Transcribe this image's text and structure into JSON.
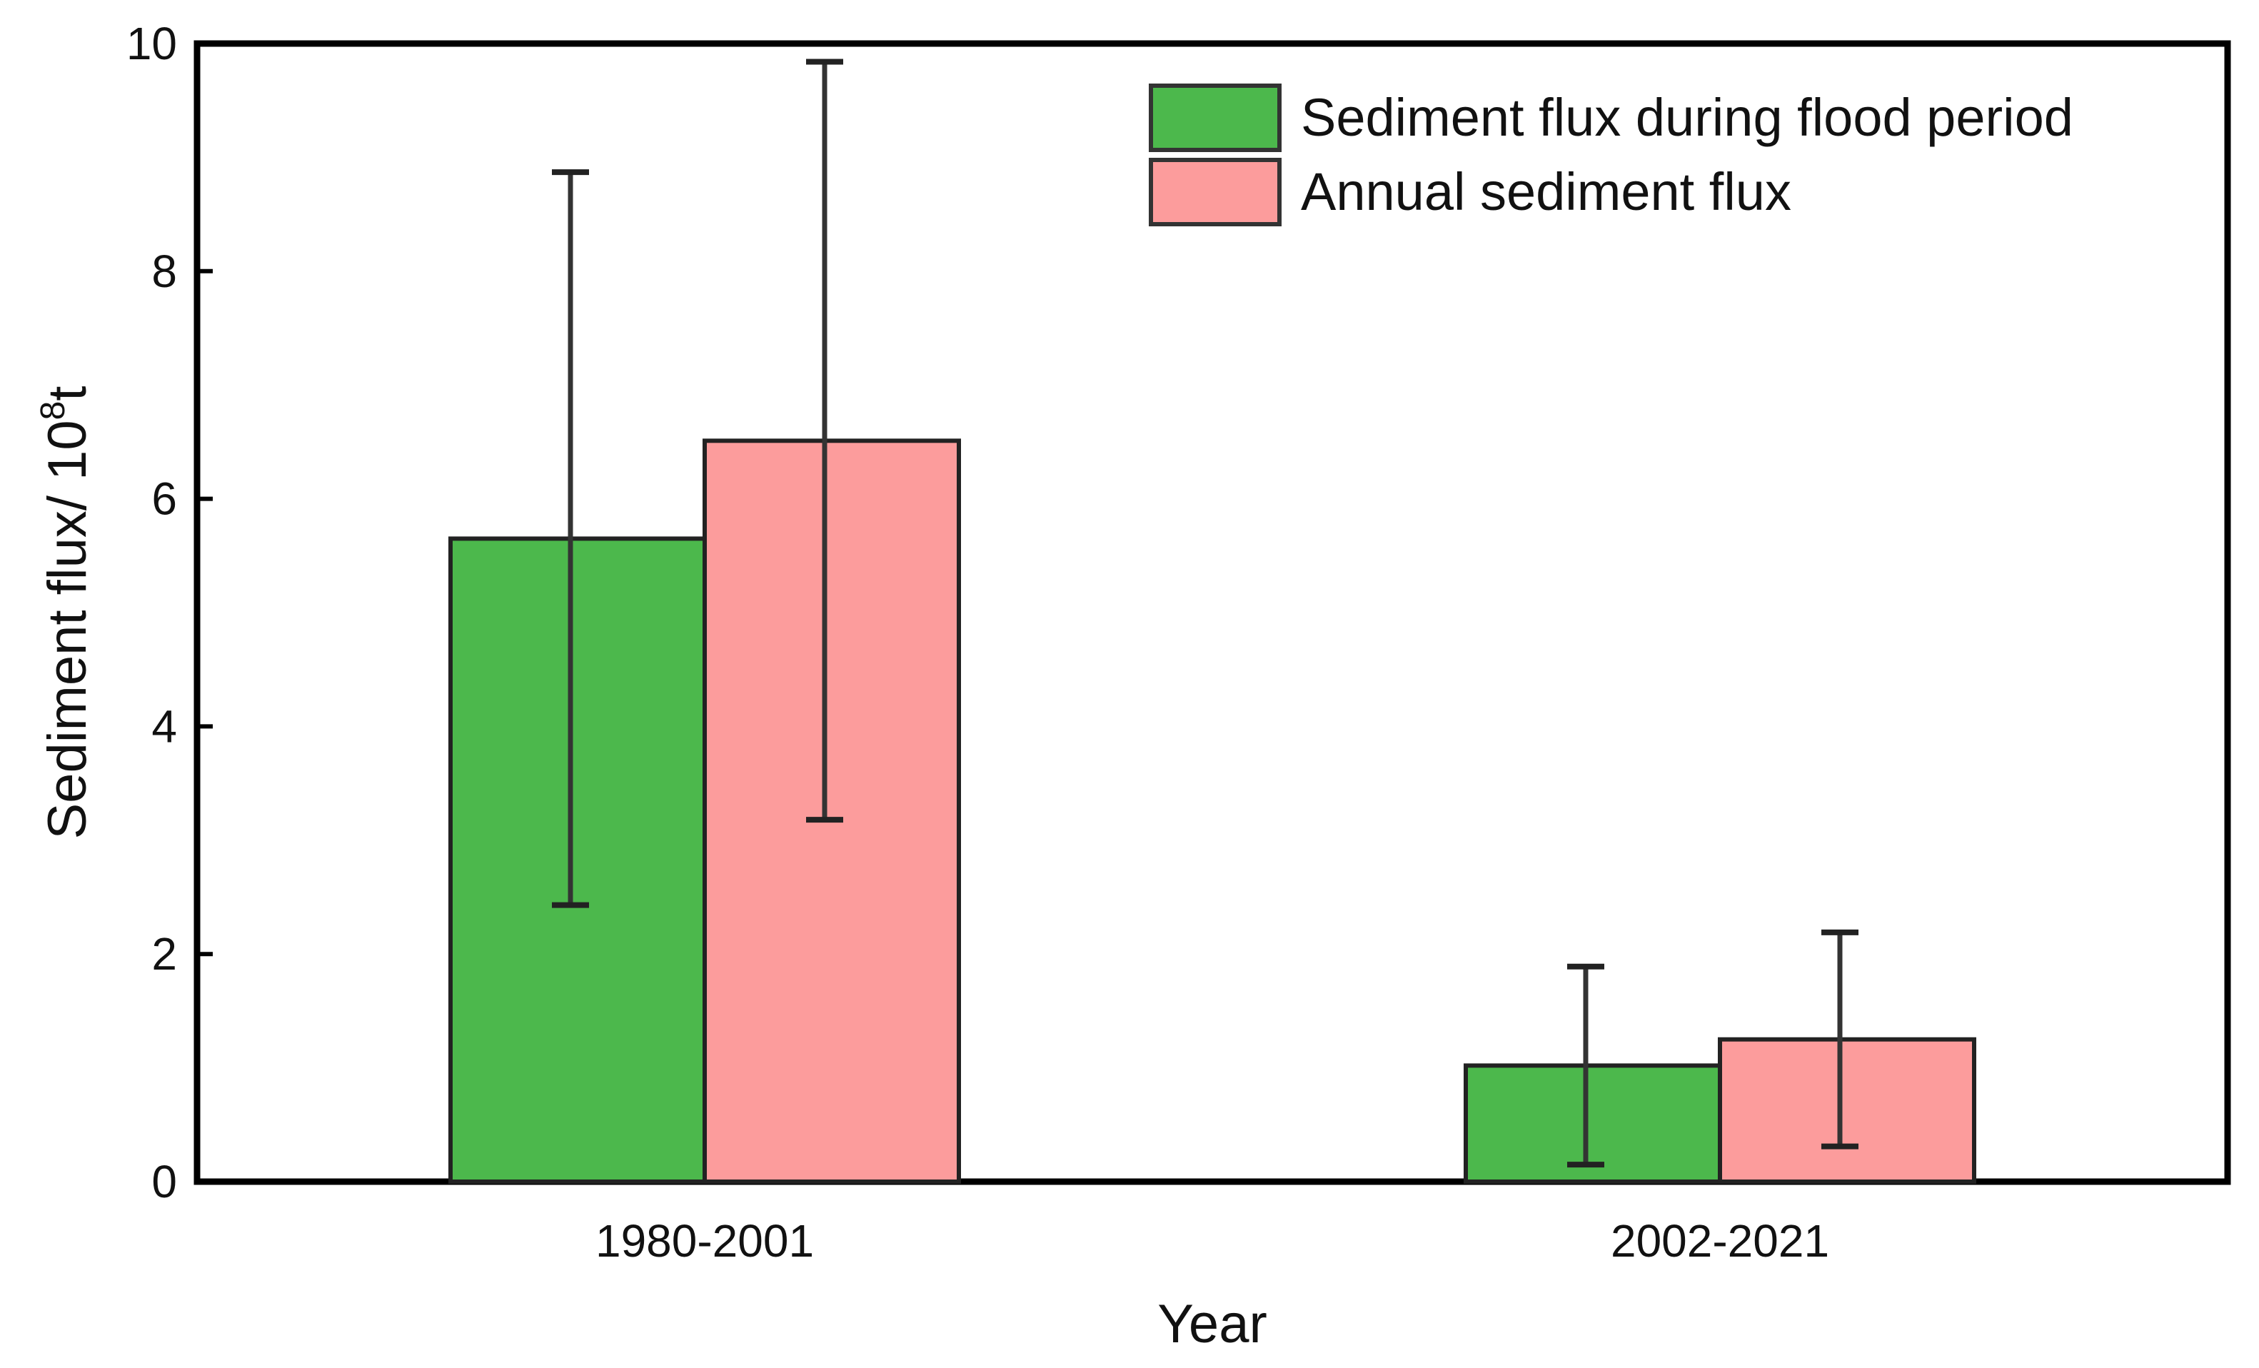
{
  "chart_data": {
    "type": "bar",
    "title": "",
    "xlabel": "Year",
    "ylabel": "Sediment  flux/ 10",
    "ylabel_superscript": "8",
    "ylabel_unit": "t",
    "categories": [
      "1980-2001",
      "2002-2021"
    ],
    "ylim": [
      0,
      10
    ],
    "yticks": [
      "0",
      "2",
      "4",
      "6",
      "8",
      "10"
    ],
    "grid": false,
    "legend_position": "top-right",
    "series": [
      {
        "name": "Sediment flux during flood period",
        "color": "#4cb84c",
        "values": [
          5.65,
          1.02
        ],
        "error_low": [
          2.43,
          0.15
        ],
        "error_high": [
          8.87,
          1.89
        ]
      },
      {
        "name": "Annual sediment flux",
        "color": "#fc9c9c",
        "values": [
          6.51,
          1.25
        ],
        "error_low": [
          3.18,
          0.31
        ],
        "error_high": [
          9.84,
          2.19
        ]
      }
    ]
  }
}
